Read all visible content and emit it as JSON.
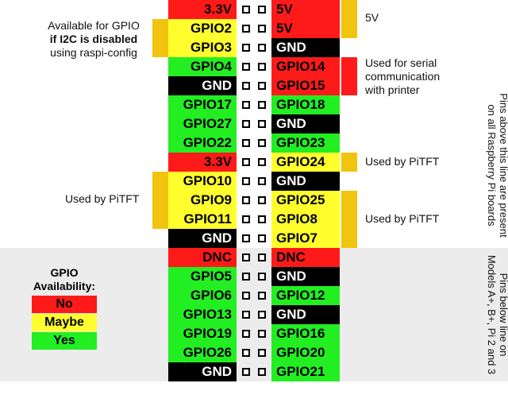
{
  "colors": {
    "red": "#ff1a1a",
    "yellow": "#ffff2e",
    "green": "#22ee22",
    "black": "#000000",
    "bracket": "#f1c40f",
    "lower_band": "#ececec"
  },
  "pins": [
    {
      "left": "3.3V",
      "left_color": "red",
      "right": "5V",
      "right_color": "red"
    },
    {
      "left": "GPIO2",
      "left_color": "yellow",
      "right": "5V",
      "right_color": "red"
    },
    {
      "left": "GPIO3",
      "left_color": "yellow",
      "right": "GND",
      "right_color": "black"
    },
    {
      "left": "GPIO4",
      "left_color": "green",
      "right": "GPIO14",
      "right_color": "red"
    },
    {
      "left": "GND",
      "left_color": "black",
      "right": "GPIO15",
      "right_color": "red"
    },
    {
      "left": "GPIO17",
      "left_color": "green",
      "right": "GPIO18",
      "right_color": "green"
    },
    {
      "left": "GPIO27",
      "left_color": "green",
      "right": "GND",
      "right_color": "black"
    },
    {
      "left": "GPIO22",
      "left_color": "green",
      "right": "GPIO23",
      "right_color": "green"
    },
    {
      "left": "3.3V",
      "left_color": "red",
      "right": "GPIO24",
      "right_color": "yellow"
    },
    {
      "left": "GPIO10",
      "left_color": "yellow",
      "right": "GND",
      "right_color": "black"
    },
    {
      "left": "GPIO9",
      "left_color": "yellow",
      "right": "GPIO25",
      "right_color": "yellow"
    },
    {
      "left": "GPIO11",
      "left_color": "yellow",
      "right": "GPIO8",
      "right_color": "yellow"
    },
    {
      "left": "GND",
      "left_color": "black",
      "right": "GPIO7",
      "right_color": "yellow"
    },
    {
      "left": "DNC",
      "left_color": "red",
      "right": "DNC",
      "right_color": "red"
    },
    {
      "left": "GPIO5",
      "left_color": "green",
      "right": "GND",
      "right_color": "black"
    },
    {
      "left": "GPIO6",
      "left_color": "green",
      "right": "GPIO12",
      "right_color": "green"
    },
    {
      "left": "GPIO13",
      "left_color": "green",
      "right": "GND",
      "right_color": "black"
    },
    {
      "left": "GPIO19",
      "left_color": "green",
      "right": "GPIO16",
      "right_color": "green"
    },
    {
      "left": "GPIO26",
      "left_color": "green",
      "right": "GPIO20",
      "right_color": "green"
    },
    {
      "left": "GND",
      "left_color": "black",
      "right": "GPIO21",
      "right_color": "green"
    }
  ],
  "annotations": {
    "i2c_line1": "Available for GPIO",
    "i2c_line2": "if I2C is disabled",
    "i2c_line3": "using raspi-config",
    "five_v": "5V",
    "serial_line1": "Used for serial",
    "serial_line2": "communication",
    "serial_line3": "with printer",
    "pitft_right_single": "Used by PiTFT",
    "pitft_left": "Used by PiTFT",
    "pitft_right_group": "Used by PiTFT",
    "side_top_line1": "Pins above this line are present",
    "side_top_line2": "on all Raspberry Pi boards",
    "side_bottom_line1": "Pins below line on",
    "side_bottom_line2": "Models A+, B+, Pi 2 and 3"
  },
  "legend": {
    "title_line1": "GPIO",
    "title_line2": "Availability:",
    "items": [
      {
        "label": "No",
        "color": "red"
      },
      {
        "label": "Maybe",
        "color": "yellow"
      },
      {
        "label": "Yes",
        "color": "green"
      }
    ]
  }
}
